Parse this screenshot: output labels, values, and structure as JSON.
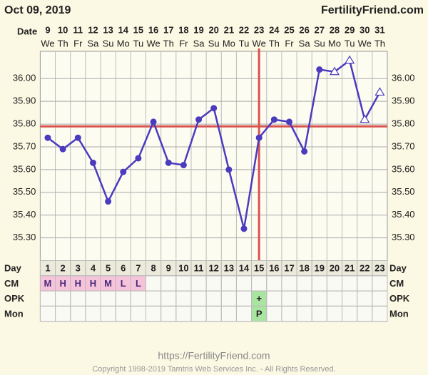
{
  "header": {
    "date": "Oct 09, 2019",
    "site": "FertilityFriend.com"
  },
  "chart_data": {
    "type": "line",
    "x_label": "Date",
    "categories": [
      "9",
      "10",
      "11",
      "12",
      "13",
      "14",
      "15",
      "16",
      "17",
      "18",
      "19",
      "20",
      "21",
      "22",
      "23",
      "24",
      "25",
      "26",
      "27",
      "28",
      "29",
      "30",
      "31"
    ],
    "weekdays": [
      "We",
      "Th",
      "Fr",
      "Sa",
      "Su",
      "Mo",
      "Tu",
      "We",
      "Th",
      "Fr",
      "Sa",
      "Su",
      "Mo",
      "Tu",
      "We",
      "Th",
      "Fr",
      "Sa",
      "Su",
      "Mo",
      "Tu",
      "We",
      "Th"
    ],
    "series": [
      {
        "color": "#4a3bbf",
        "values": [
          35.74,
          35.69,
          35.74,
          35.63,
          35.46,
          35.59,
          35.65,
          35.81,
          35.63,
          35.62,
          35.82,
          35.87,
          35.6,
          35.34,
          35.74,
          35.82,
          35.81,
          35.68,
          36.04,
          36.03,
          36.08,
          35.82,
          35.94
        ],
        "markers": [
          "circle",
          "circle",
          "circle",
          "circle",
          "circle",
          "circle",
          "circle",
          "circle",
          "circle",
          "circle",
          "circle",
          "circle",
          "circle",
          "circle",
          "circle",
          "circle",
          "circle",
          "circle",
          "circle",
          "triangle",
          "triangle",
          "triangle",
          "triangle"
        ]
      }
    ],
    "ylim": [
      35.2,
      36.12
    ],
    "yticks": [
      {
        "value": 35.3,
        "label": "35.30"
      },
      {
        "value": 35.4,
        "label": "35.40"
      },
      {
        "value": 35.5,
        "label": "35.50"
      },
      {
        "value": 35.6,
        "label": "35.60"
      },
      {
        "value": 35.7,
        "label": "35.70"
      },
      {
        "value": 35.8,
        "label": "35.80"
      },
      {
        "value": 35.9,
        "label": "35.90"
      },
      {
        "value": 36,
        "label": "36.00"
      }
    ],
    "grid": true,
    "coverline": {
      "value": 35.79,
      "color": "#d9534f"
    },
    "ovulation_date": "23"
  },
  "table": {
    "rows": [
      {
        "label": "Day",
        "cells": [
          1,
          2,
          3,
          4,
          5,
          6,
          7,
          8,
          9,
          10,
          11,
          12,
          13,
          14,
          15,
          16,
          17,
          18,
          19,
          20,
          21,
          22,
          23
        ]
      },
      {
        "label": "CM",
        "cells": [
          "M",
          "H",
          "H",
          "H",
          "M",
          "L",
          "L",
          null,
          null,
          null,
          null,
          null,
          null,
          null,
          null,
          null,
          null,
          null,
          null,
          null,
          null,
          null,
          null
        ]
      },
      {
        "label": "OPK",
        "cells": [
          null,
          null,
          null,
          null,
          null,
          null,
          null,
          null,
          null,
          null,
          null,
          null,
          null,
          null,
          "+",
          null,
          null,
          null,
          null,
          null,
          null,
          null,
          null
        ]
      },
      {
        "label": "Mon",
        "cells": [
          null,
          null,
          null,
          null,
          null,
          null,
          null,
          null,
          null,
          null,
          null,
          null,
          null,
          null,
          "P",
          null,
          null,
          null,
          null,
          null,
          null,
          null,
          null
        ]
      }
    ]
  },
  "footer": {
    "url": "https://FertilityFriend.com",
    "copyright": "Copyright 1998-2019 Tamtris Web Services Inc. - All Rights Reserved."
  }
}
